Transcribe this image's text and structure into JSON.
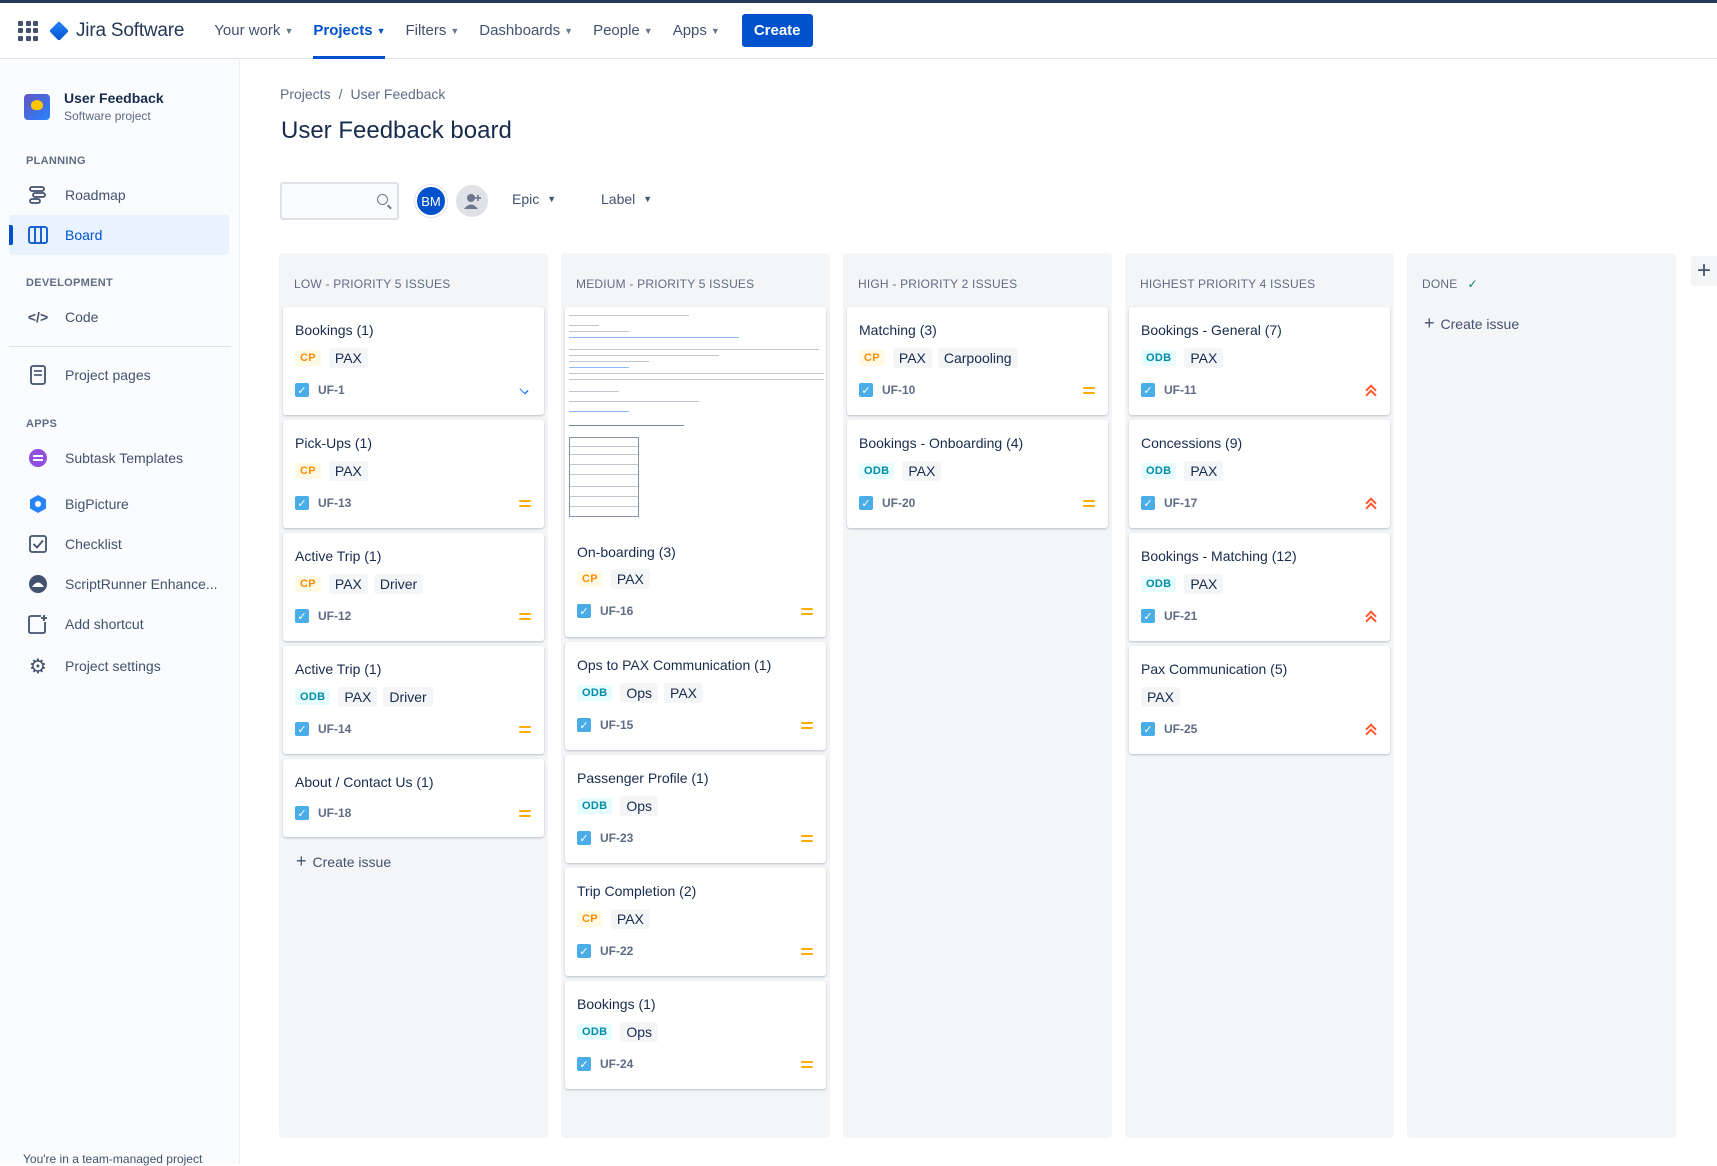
{
  "nav": {
    "product": "Jira Software",
    "items": [
      {
        "label": "Your work"
      },
      {
        "label": "Projects"
      },
      {
        "label": "Filters"
      },
      {
        "label": "Dashboards"
      },
      {
        "label": "People"
      },
      {
        "label": "Apps"
      }
    ],
    "create_label": "Create"
  },
  "sidebar": {
    "project_name": "User Feedback",
    "project_type": "Software project",
    "planning": "PLANNING",
    "roadmap": "Roadmap",
    "board": "Board",
    "development": "DEVELOPMENT",
    "code": "Code",
    "project_pages": "Project pages",
    "apps": "APPS",
    "subtask_templates": "Subtask Templates",
    "bigpicture": "BigPicture",
    "checklist": "Checklist",
    "scriptrunner": "ScriptRunner Enhance...",
    "add_shortcut": "Add shortcut",
    "project_settings": "Project settings",
    "footer": "You're in a team-managed project"
  },
  "breadcrumb": {
    "projects": "Projects",
    "separator": "/",
    "current": "User Feedback"
  },
  "page_title": "User Feedback board",
  "filters": {
    "avatar_initials": "BM",
    "epic": "Epic",
    "label": "Label"
  },
  "columns": [
    {
      "title": "LOW - PRIORITY 5 ISSUES",
      "cards": [
        {
          "title": "Bookings (1)",
          "epic": "CP",
          "labels": [
            "PAX"
          ],
          "key": "UF-1"
        },
        {
          "title": "Pick-Ups (1)",
          "epic": "CP",
          "labels": [
            "PAX"
          ],
          "key": "UF-13"
        },
        {
          "title": "Active Trip (1)",
          "epic": "CP",
          "labels": [
            "PAX",
            "Driver"
          ],
          "key": "UF-12"
        },
        {
          "title": "Active Trip (1)",
          "epic": "ODB",
          "labels": [
            "PAX",
            "Driver"
          ],
          "key": "UF-14"
        },
        {
          "title": "About / Contact Us (1)",
          "key": "UF-18"
        }
      ],
      "create": "Create issue"
    },
    {
      "title": "MEDIUM - PRIORITY 5 ISSUES",
      "cards": [
        {
          "title": "On-boarding (3)",
          "epic": "CP",
          "labels": [
            "PAX"
          ],
          "key": "UF-16"
        },
        {
          "title": "Ops to PAX Communication (1)",
          "epic": "ODB",
          "labels": [
            "Ops",
            "PAX"
          ],
          "key": "UF-15"
        },
        {
          "title": "Passenger Profile (1)",
          "epic": "ODB",
          "labels": [
            "Ops"
          ],
          "key": "UF-23"
        },
        {
          "title": "Trip Completion (2)",
          "epic": "CP",
          "labels": [
            "PAX"
          ],
          "key": "UF-22"
        },
        {
          "title": "Bookings (1)",
          "epic": "ODB",
          "labels": [
            "Ops"
          ],
          "key": "UF-24"
        }
      ]
    },
    {
      "title": "HIGH - PRIORITY 2 ISSUES",
      "cards": [
        {
          "title": "Matching (3)",
          "epic": "CP",
          "labels": [
            "PAX",
            "Carpooling"
          ],
          "key": "UF-10"
        },
        {
          "title": "Bookings - Onboarding (4)",
          "epic": "ODB",
          "labels": [
            "PAX"
          ],
          "key": "UF-20"
        }
      ]
    },
    {
      "title": "HIGHEST PRIORITY 4 ISSUES",
      "cards": [
        {
          "title": "Bookings - General (7)",
          "epic": "ODB",
          "labels": [
            "PAX"
          ],
          "key": "UF-11"
        },
        {
          "title": "Concessions (9)",
          "epic": "ODB",
          "labels": [
            "PAX"
          ],
          "key": "UF-17"
        },
        {
          "title": "Bookings - Matching (12)",
          "epic": "ODB",
          "labels": [
            "PAX"
          ],
          "key": "UF-21"
        },
        {
          "title": "Pax Communication (5)",
          "labels": [
            "PAX"
          ],
          "key": "UF-25"
        }
      ]
    },
    {
      "title": "DONE",
      "create": "Create issue"
    }
  ],
  "colors": {
    "accent": "#0052cc",
    "cp_epic": "#ff8b00",
    "odb_epic": "#008da6",
    "priority_medium": "#ffab00",
    "priority_highest": "#ff5630",
    "priority_low": "#2684ff"
  }
}
